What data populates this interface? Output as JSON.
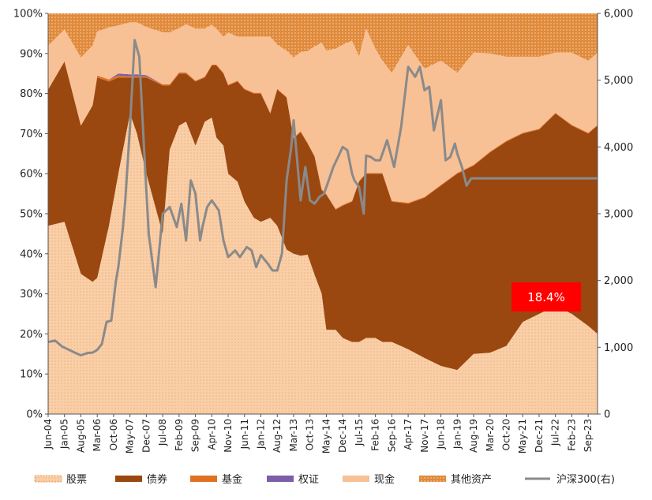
{
  "chart_data": {
    "type": "area",
    "title": "",
    "stacking": "percent",
    "left_axis": {
      "min": 0,
      "max": 100,
      "ticks": [
        "0%",
        "10%",
        "20%",
        "30%",
        "40%",
        "50%",
        "60%",
        "70%",
        "80%",
        "90%",
        "100%"
      ]
    },
    "right_axis": {
      "min": 0,
      "max": 6000,
      "ticks": [
        "0",
        "1,000",
        "2,000",
        "3,000",
        "4,000",
        "5,000",
        "6,000"
      ]
    },
    "x_labels": [
      "Jun-04",
      "Jan-05",
      "Aug-05",
      "Mar-06",
      "Oct-06",
      "May-07",
      "Dec-07",
      "Jul-08",
      "Feb-09",
      "Sep-09",
      "Apr-10",
      "Nov-10",
      "Jun-11",
      "Jan-12",
      "Aug-12",
      "Mar-13",
      "Oct-13",
      "May-14",
      "Dec-14",
      "Jul-15",
      "Feb-16",
      "Sep-16",
      "Apr-17",
      "Nov-17",
      "Jun-18",
      "Jan-19",
      "Aug-19",
      "Mar-20",
      "Oct-20",
      "May-21",
      "Dec-21",
      "Jul-22",
      "Feb-23",
      "Sep-23"
    ],
    "x_label_positions": [
      0,
      7,
      14,
      21,
      28,
      35,
      42,
      49,
      56,
      63,
      70,
      77,
      84,
      91,
      98,
      105,
      112,
      119,
      126,
      133,
      140,
      147,
      154,
      161,
      168,
      175,
      182,
      189,
      196,
      203,
      210,
      217,
      224,
      231
    ],
    "period_count": 236,
    "series_order": [
      "股票",
      "债券",
      "基金",
      "权证",
      "现金",
      "其他资产"
    ],
    "stack_boundaries_x": [
      0,
      7,
      14,
      19,
      21,
      26,
      30,
      35,
      38,
      42,
      49,
      52,
      56,
      59,
      63,
      67,
      70,
      72,
      75,
      77,
      81,
      84,
      88,
      91,
      95,
      98,
      102,
      105,
      108,
      111,
      114,
      117,
      119,
      123,
      126,
      130,
      133,
      136,
      140,
      143,
      147,
      154,
      161,
      168,
      175,
      182,
      189,
      196,
      203,
      210,
      217,
      224,
      231,
      235
    ],
    "series": [
      {
        "name": "股票",
        "color": "#f9cfa8",
        "values": [
          47,
          48,
          35,
          33,
          34,
          47,
          60,
          75,
          70,
          60,
          45,
          66,
          72,
          73,
          67,
          73,
          74,
          69,
          67,
          60,
          58,
          53,
          49,
          48,
          49,
          47,
          39,
          32,
          32,
          33,
          33,
          28,
          20,
          21,
          19,
          18,
          18,
          19,
          19,
          18,
          18,
          16,
          14,
          12,
          11,
          15,
          15,
          17,
          23,
          25,
          27,
          25,
          22,
          20
        ]
      },
      {
        "name": "债券",
        "color": "#9a4710",
        "values": [
          34,
          40,
          37,
          44,
          50,
          36,
          24,
          9,
          14,
          24,
          37,
          16,
          13,
          12,
          16,
          11,
          13,
          18,
          18,
          22,
          25,
          28,
          31,
          32,
          26,
          34,
          36,
          23,
          25,
          23,
          28,
          24,
          32,
          30,
          33,
          35,
          40,
          41,
          41,
          42,
          35,
          36,
          40,
          45,
          49,
          47,
          49,
          51,
          47,
          46,
          48,
          47,
          48,
          52
        ]
      },
      {
        "name": "基金",
        "color": "#e07120",
        "values": [
          0,
          0,
          0,
          0,
          0.5,
          0.5,
          0.5,
          0.3,
          0.3,
          0.3,
          0.3,
          0.3,
          0.3,
          0.3,
          0.2,
          0.2,
          0.2,
          0.2,
          0.2,
          0.2,
          0.2,
          0.2,
          0.2,
          0.2,
          0.2,
          0.2,
          0.2,
          0.2,
          0.2,
          0.2,
          0.2,
          0.2,
          0.2,
          0.2,
          0.2,
          0.2,
          0.2,
          0.2,
          0.2,
          0.2,
          0.2,
          0.2,
          0.2,
          0.2,
          0.2,
          0.2,
          0.2,
          0.2,
          0.2,
          0.2,
          0.2,
          0.2,
          0.2,
          0.2
        ]
      },
      {
        "name": "权证",
        "color": "#7b5ea7",
        "values": [
          0,
          0,
          0,
          0,
          0,
          0,
          0.5,
          0.5,
          0.5,
          0.3,
          0,
          0,
          0,
          0,
          0,
          0,
          0,
          0,
          0,
          0,
          0,
          0,
          0,
          0,
          0,
          0,
          0,
          0,
          0,
          0,
          0,
          0,
          0,
          0,
          0,
          0,
          0,
          0,
          0,
          0,
          0,
          0,
          0,
          0,
          0,
          0,
          0,
          0,
          0,
          0,
          0,
          0,
          0,
          0
        ]
      },
      {
        "name": "现金",
        "color": "#f8c095",
        "values": [
          11,
          8,
          17,
          15,
          11,
          13,
          12,
          13,
          13,
          12,
          13,
          13,
          11,
          12,
          13,
          12,
          10,
          9,
          9,
          13,
          11,
          13,
          14,
          14,
          19,
          11,
          11,
          16,
          16,
          19,
          26,
          34,
          34,
          40,
          40,
          40,
          31,
          36,
          31,
          28,
          32,
          39,
          32,
          31,
          25,
          28,
          24,
          21,
          19,
          18,
          15,
          18,
          18,
          18
        ]
      },
      {
        "name": "其他资产",
        "color": "#d9772b",
        "values": [
          8,
          4,
          11,
          8,
          4.5,
          3.5,
          3,
          2.2,
          2.2,
          3.4,
          4.7,
          4.7,
          3.7,
          2.7,
          3.8,
          3.8,
          2.8,
          3.8,
          5.8,
          4.8,
          5.8,
          5.8,
          5.8,
          5.8,
          5.8,
          7.8,
          8.8,
          8.8,
          7.8,
          7.8,
          7.8,
          6.8,
          8.8,
          8.8,
          7.8,
          6.8,
          10.8,
          3.8,
          8.8,
          11.8,
          14.8,
          7.8,
          13.8,
          11.8,
          14.8,
          9.8,
          9.8,
          10.8,
          10.8,
          10.8,
          9.8,
          9.8,
          11.8,
          9.8
        ]
      }
    ],
    "line": {
      "name": "沪深300(右)",
      "color": "#8a8a8a",
      "x": [
        0,
        3,
        6,
        9,
        12,
        14,
        17,
        19,
        21,
        23,
        25,
        27,
        29,
        30,
        32,
        33,
        35,
        37,
        39,
        41,
        43,
        46,
        49,
        52,
        55,
        57,
        59,
        61,
        63,
        65,
        66,
        68,
        70,
        73,
        75,
        77,
        80,
        82,
        85,
        87,
        89,
        91,
        94,
        96,
        98,
        100,
        102,
        104,
        105,
        108,
        110,
        112,
        114,
        116,
        118,
        120,
        122,
        124,
        126,
        128,
        130,
        131,
        133,
        135,
        136,
        138,
        140,
        142,
        145,
        148,
        151,
        154,
        157,
        159,
        161,
        163,
        165,
        168,
        170,
        172,
        174,
        175,
        177,
        179,
        181,
        183,
        185,
        187,
        189,
        191,
        193,
        196,
        198,
        200,
        202,
        204,
        206,
        208,
        210,
        212,
        214,
        216,
        218,
        220,
        222,
        224,
        226,
        228,
        230,
        232,
        234,
        235
      ],
      "values": [
        1080,
        1100,
        1010,
        960,
        910,
        880,
        915,
        920,
        960,
        1050,
        1380,
        1400,
        2000,
        2200,
        2800,
        3200,
        4300,
        5600,
        5350,
        4000,
        2700,
        1900,
        3000,
        3100,
        2800,
        3150,
        2600,
        3500,
        3300,
        2600,
        2800,
        3100,
        3200,
        3050,
        2600,
        2350,
        2450,
        2350,
        2500,
        2450,
        2200,
        2380,
        2250,
        2150,
        2150,
        2400,
        3500,
        4000,
        4400,
        3200,
        3700,
        3200,
        3150,
        3250,
        3300,
        3500,
        3700,
        3850,
        4000,
        3950,
        3600,
        3500,
        3400,
        3000,
        3870,
        3850,
        3800,
        3800,
        4100,
        3700,
        4300,
        5200,
        5050,
        5200,
        4850,
        4900,
        4250,
        4700,
        3800,
        3850,
        4050,
        3900,
        3700,
        3420,
        3530,
        3530,
        3530,
        3530,
        3530,
        3530,
        3530,
        3530,
        3530,
        3530,
        3530,
        3530,
        3530,
        3530,
        3530,
        3530,
        3530,
        3530,
        3530,
        3530,
        3530,
        3530,
        3530,
        3530,
        3530,
        3530,
        3530,
        3530
      ]
    },
    "annotation": {
      "text": "18.4%"
    },
    "legend": [
      {
        "label": "股票",
        "swatch": "dotted-peach"
      },
      {
        "label": "债券",
        "swatch": "solid-brown"
      },
      {
        "label": "基金",
        "swatch": "solid-orange"
      },
      {
        "label": "权证",
        "swatch": "solid-purple"
      },
      {
        "label": "现金",
        "swatch": "solid-peach"
      },
      {
        "label": "其他资产",
        "swatch": "dotted-orange"
      },
      {
        "label": "沪深300(右)",
        "swatch": "line-gray"
      }
    ]
  }
}
